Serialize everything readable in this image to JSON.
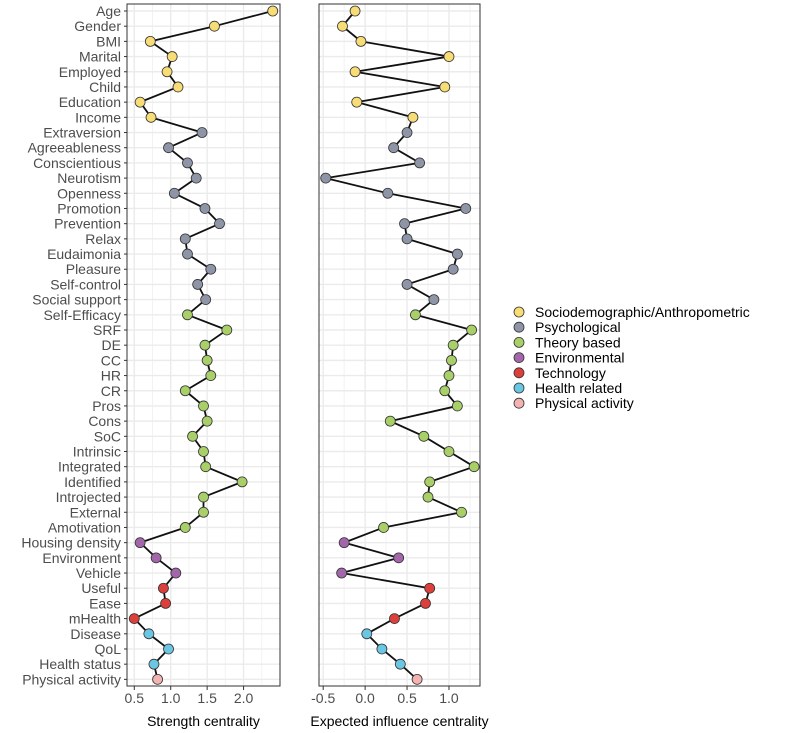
{
  "chart_data": {
    "type": "line",
    "variables": [
      "Age",
      "Gender",
      "BMI",
      "Marital",
      "Employed",
      "Child",
      "Education",
      "Income",
      "Extraversion",
      "Agreeableness",
      "Conscientious",
      "Neurotism",
      "Openness",
      "Promotion",
      "Prevention",
      "Relax",
      "Eudaimonia",
      "Pleasure",
      "Self-control",
      "Social support",
      "Self-Efficacy",
      "SRF",
      "DE",
      "CC",
      "HR",
      "CR",
      "Pros",
      "Cons",
      "SoC",
      "Intrinsic",
      "Integrated",
      "Identified",
      "Introjected",
      "External",
      "Amotivation",
      "Housing density",
      "Environment",
      "Vehicle",
      "Useful",
      "Ease",
      "mHealth",
      "Disease",
      "QoL",
      "Health status",
      "Physical activity"
    ],
    "groups": [
      "Sociodemographic/Anthropometric",
      "Sociodemographic/Anthropometric",
      "Sociodemographic/Anthropometric",
      "Sociodemographic/Anthropometric",
      "Sociodemographic/Anthropometric",
      "Sociodemographic/Anthropometric",
      "Sociodemographic/Anthropometric",
      "Sociodemographic/Anthropometric",
      "Psychological",
      "Psychological",
      "Psychological",
      "Psychological",
      "Psychological",
      "Psychological",
      "Psychological",
      "Psychological",
      "Psychological",
      "Psychological",
      "Psychological",
      "Psychological",
      "Theory based",
      "Theory based",
      "Theory based",
      "Theory based",
      "Theory based",
      "Theory based",
      "Theory based",
      "Theory based",
      "Theory based",
      "Theory based",
      "Theory based",
      "Theory based",
      "Theory based",
      "Theory based",
      "Theory based",
      "Environmental",
      "Environmental",
      "Environmental",
      "Technology",
      "Technology",
      "Technology",
      "Health related",
      "Health related",
      "Health related",
      "Physical activity"
    ],
    "legend": {
      "placement": "right",
      "items": [
        {
          "label": "Sociodemographic/Anthropometric",
          "color": "#F8DC75"
        },
        {
          "label": "Psychological",
          "color": "#8E95A6"
        },
        {
          "label": "Theory based",
          "color": "#A9CF68"
        },
        {
          "label": "Environmental",
          "color": "#A366AB"
        },
        {
          "label": "Technology",
          "color": "#DD3F3A"
        },
        {
          "label": "Health related",
          "color": "#6BC6E3"
        },
        {
          "label": "Physical activity",
          "color": "#F3B3B3"
        }
      ]
    },
    "panels": [
      {
        "xlabel": "Strength centrality",
        "xlim": [
          0.4,
          2.5
        ],
        "xticks": [
          0.5,
          1.0,
          1.5,
          2.0
        ],
        "xtick_labels": [
          "0.5",
          "1.0",
          "1.5",
          "2.0"
        ],
        "values": [
          2.4,
          1.6,
          0.72,
          1.02,
          0.95,
          1.1,
          0.58,
          0.73,
          1.43,
          0.97,
          1.23,
          1.35,
          1.05,
          1.47,
          1.67,
          1.2,
          1.23,
          1.55,
          1.37,
          1.48,
          1.23,
          1.77,
          1.47,
          1.5,
          1.55,
          1.2,
          1.45,
          1.5,
          1.3,
          1.45,
          1.48,
          1.98,
          1.45,
          1.45,
          1.2,
          0.58,
          0.8,
          1.07,
          0.9,
          0.93,
          0.5,
          0.7,
          0.97,
          0.77,
          0.82
        ]
      },
      {
        "xlabel": "Expected influence centrality",
        "xlim": [
          -0.55,
          1.37
        ],
        "xticks": [
          -0.5,
          0.0,
          0.5,
          1.0
        ],
        "xtick_labels": [
          "-0.5",
          "0.0",
          "0.5",
          "1.0"
        ],
        "values": [
          -0.12,
          -0.27,
          -0.05,
          1.0,
          -0.12,
          0.95,
          -0.1,
          0.57,
          0.5,
          0.34,
          0.65,
          -0.47,
          0.27,
          1.2,
          0.47,
          0.5,
          1.1,
          1.05,
          0.5,
          0.82,
          0.6,
          1.27,
          1.05,
          1.03,
          1.0,
          0.95,
          1.1,
          0.3,
          0.7,
          1.0,
          1.3,
          0.77,
          0.75,
          1.15,
          0.22,
          -0.25,
          0.4,
          -0.28,
          0.77,
          0.72,
          0.35,
          0.02,
          0.2,
          0.42,
          0.62
        ]
      }
    ],
    "grid": true
  }
}
